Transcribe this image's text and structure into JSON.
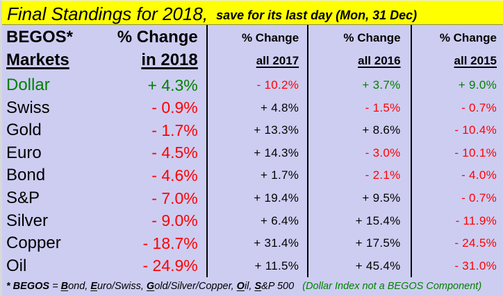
{
  "colors": {
    "title_bg": "#FFFF00",
    "table_bg": "#CDCDF2",
    "positive_green": "#008000",
    "negative_red": "#FF0000",
    "neutral_black": "#000000",
    "grid_line": "#000000"
  },
  "title": {
    "main": "Final Standings for 2018,",
    "sub": "save for its last day (Mon, 31 Dec)"
  },
  "table": {
    "header": {
      "markets_line1": "BEGOS*",
      "markets_line2": "Markets",
      "col2018_line1": "% Change",
      "col2018_line2": "in 2018",
      "col2017_line1": "% Change",
      "col2017_line2": "all 2017",
      "col2016_line1": "% Change",
      "col2016_line2": "all 2016",
      "col2015_line1": "% Change",
      "col2015_line2": "all 2015"
    },
    "rows": [
      {
        "market": {
          "text": "Dollar",
          "color": "#008000"
        },
        "y2018": {
          "text": "+ 4.3%",
          "color": "#008000"
        },
        "y2017": {
          "text": "- 10.2%",
          "color": "#FF0000"
        },
        "y2016": {
          "text": "+ 3.7%",
          "color": "#008000"
        },
        "y2015": {
          "text": "+ 9.0%",
          "color": "#008000"
        }
      },
      {
        "market": {
          "text": "Swiss",
          "color": "#000000"
        },
        "y2018": {
          "text": "- 0.9%",
          "color": "#FF0000"
        },
        "y2017": {
          "text": "+ 4.8%",
          "color": "#000000"
        },
        "y2016": {
          "text": "- 1.5%",
          "color": "#FF0000"
        },
        "y2015": {
          "text": "- 0.7%",
          "color": "#FF0000"
        }
      },
      {
        "market": {
          "text": "Gold",
          "color": "#000000"
        },
        "y2018": {
          "text": "- 1.7%",
          "color": "#FF0000"
        },
        "y2017": {
          "text": "+ 13.3%",
          "color": "#000000"
        },
        "y2016": {
          "text": "+ 8.6%",
          "color": "#000000"
        },
        "y2015": {
          "text": "- 10.4%",
          "color": "#FF0000"
        }
      },
      {
        "market": {
          "text": "Euro",
          "color": "#000000"
        },
        "y2018": {
          "text": "- 4.5%",
          "color": "#FF0000"
        },
        "y2017": {
          "text": "+ 14.3%",
          "color": "#000000"
        },
        "y2016": {
          "text": "- 3.0%",
          "color": "#FF0000"
        },
        "y2015": {
          "text": "- 10.1%",
          "color": "#FF0000"
        }
      },
      {
        "market": {
          "text": "Bond",
          "color": "#000000"
        },
        "y2018": {
          "text": "- 4.6%",
          "color": "#FF0000"
        },
        "y2017": {
          "text": "+ 1.7%",
          "color": "#000000"
        },
        "y2016": {
          "text": "- 2.1%",
          "color": "#FF0000"
        },
        "y2015": {
          "text": "- 4.0%",
          "color": "#FF0000"
        }
      },
      {
        "market": {
          "text": "S&P",
          "color": "#000000"
        },
        "y2018": {
          "text": "- 7.0%",
          "color": "#FF0000"
        },
        "y2017": {
          "text": "+ 19.4%",
          "color": "#000000"
        },
        "y2016": {
          "text": "+ 9.5%",
          "color": "#000000"
        },
        "y2015": {
          "text": "- 0.7%",
          "color": "#FF0000"
        }
      },
      {
        "market": {
          "text": "Silver",
          "color": "#000000"
        },
        "y2018": {
          "text": "- 9.0%",
          "color": "#FF0000"
        },
        "y2017": {
          "text": "+ 6.4%",
          "color": "#000000"
        },
        "y2016": {
          "text": "+ 15.4%",
          "color": "#000000"
        },
        "y2015": {
          "text": "- 11.9%",
          "color": "#FF0000"
        }
      },
      {
        "market": {
          "text": "Copper",
          "color": "#000000"
        },
        "y2018": {
          "text": "- 18.7%",
          "color": "#FF0000"
        },
        "y2017": {
          "text": "+ 31.4%",
          "color": "#000000"
        },
        "y2016": {
          "text": "+ 17.5%",
          "color": "#000000"
        },
        "y2015": {
          "text": "- 24.5%",
          "color": "#FF0000"
        }
      },
      {
        "market": {
          "text": "Oil",
          "color": "#000000"
        },
        "y2018": {
          "text": "- 24.9%",
          "color": "#FF0000"
        },
        "y2017": {
          "text": "+ 11.5%",
          "color": "#000000"
        },
        "y2016": {
          "text": "+ 45.4%",
          "color": "#000000"
        },
        "y2015": {
          "text": "- 31.0%",
          "color": "#FF0000"
        }
      }
    ]
  },
  "footnote": {
    "segments": [
      {
        "t": "* ",
        "s": "b"
      },
      {
        "t": "BEGOS",
        "s": "b"
      },
      {
        "t": " = ",
        "s": "r"
      },
      {
        "t": "B",
        "s": "bu"
      },
      {
        "t": "ond, ",
        "s": "r"
      },
      {
        "t": "E",
        "s": "bu"
      },
      {
        "t": "uro/Swiss, ",
        "s": "r"
      },
      {
        "t": "G",
        "s": "bu"
      },
      {
        "t": "old/Silver/Copper, ",
        "s": "r"
      },
      {
        "t": "O",
        "s": "bu"
      },
      {
        "t": "il, ",
        "s": "r"
      },
      {
        "t": "S",
        "s": "bu"
      },
      {
        "t": "&P 500   ",
        "s": "r"
      },
      {
        "t": "(Dollar Index not a BEGOS Component)",
        "s": "g"
      }
    ]
  },
  "chart_data": {
    "type": "table",
    "title": "Final Standings for 2018, save for its last day (Mon, 31 Dec)",
    "row_header": "BEGOS* Markets",
    "categories": [
      "Dollar",
      "Swiss",
      "Gold",
      "Euro",
      "Bond",
      "S&P",
      "Silver",
      "Copper",
      "Oil"
    ],
    "series": [
      {
        "name": "% Change in 2018",
        "values": [
          4.3,
          -0.9,
          -1.7,
          -4.5,
          -4.6,
          -7.0,
          -9.0,
          -18.7,
          -24.9
        ]
      },
      {
        "name": "% Change all 2017",
        "values": [
          -10.2,
          4.8,
          13.3,
          14.3,
          1.7,
          19.4,
          6.4,
          31.4,
          11.5
        ]
      },
      {
        "name": "% Change all 2016",
        "values": [
          3.7,
          -1.5,
          8.6,
          -3.0,
          -2.1,
          9.5,
          15.4,
          17.5,
          45.4
        ]
      },
      {
        "name": "% Change all 2015",
        "values": [
          9.0,
          -0.7,
          -10.4,
          -10.1,
          -4.0,
          -0.7,
          -11.9,
          -24.5,
          -31.0
        ]
      }
    ],
    "value_unit": "%",
    "color_coding": "negative values red, Dollar-row positives green, other positives black"
  }
}
